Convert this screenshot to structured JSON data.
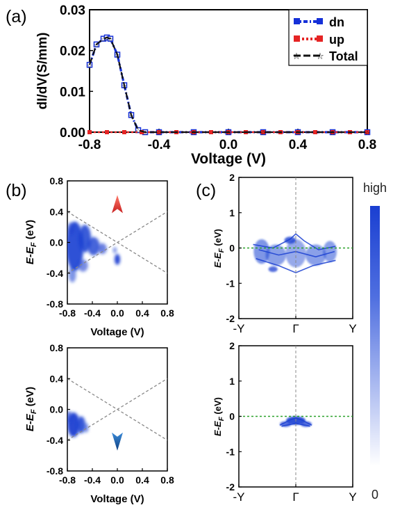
{
  "figure": {
    "panel_labels": {
      "a": "(a)",
      "b": "(b)",
      "c": "(c)"
    },
    "colors": {
      "dn": "#1530d8",
      "up": "#e52424",
      "total": "#111111",
      "map": "#1a3fd1",
      "axes": "#000000",
      "guide": "#888888",
      "fermi": "#2aa12a"
    }
  },
  "chart_data": [
    {
      "id": "a",
      "type": "line",
      "xlabel": "Voltage (V)",
      "ylabel": "dI/dV(S/mm)",
      "xlim": [
        -0.8,
        0.8
      ],
      "ylim": [
        0.0,
        0.03
      ],
      "xticks": [
        "-0.8",
        "-0.4",
        "0.0",
        "0.4",
        "0.8"
      ],
      "yticks": [
        "0.00",
        "0.01",
        "0.02",
        "0.03"
      ],
      "grid": false,
      "legend": "top-right",
      "series": [
        {
          "name": "dn",
          "x": [
            -0.8,
            -0.76,
            -0.72,
            -0.7,
            -0.68,
            -0.64,
            -0.6,
            -0.56,
            -0.52,
            -0.48,
            -0.4,
            -0.2,
            0.0,
            0.2,
            0.4,
            0.6,
            0.8
          ],
          "values": [
            0.0165,
            0.0215,
            0.0229,
            0.0232,
            0.0229,
            0.019,
            0.0115,
            0.0042,
            0.0005,
            0.0,
            0.0,
            0.0,
            0.0,
            0.0,
            0.0,
            0.0,
            0.0
          ]
        },
        {
          "name": "up",
          "x": [
            -0.8,
            -0.7,
            -0.6,
            -0.5,
            -0.4,
            -0.3,
            -0.2,
            -0.1,
            0.0,
            0.1,
            0.2,
            0.3,
            0.4,
            0.5,
            0.6,
            0.7,
            0.8
          ],
          "values": [
            0,
            0,
            0,
            0,
            0,
            0,
            0,
            0,
            0,
            0,
            0,
            0,
            0,
            0,
            0,
            0,
            0
          ]
        },
        {
          "name": "Total",
          "x": [
            -0.8,
            -0.76,
            -0.72,
            -0.7,
            -0.68,
            -0.64,
            -0.6,
            -0.56,
            -0.52,
            -0.48,
            -0.4,
            -0.2,
            0.0,
            0.2,
            0.4,
            0.6,
            0.8
          ],
          "values": [
            0.0165,
            0.0215,
            0.0229,
            0.0232,
            0.0229,
            0.019,
            0.0115,
            0.0042,
            0.0005,
            0.0,
            0.0,
            0.0,
            0.0,
            0.0,
            0.0,
            0.0,
            0.0
          ]
        }
      ]
    },
    {
      "id": "b-top",
      "type": "heatmap",
      "xlabel": "Voltage (V)",
      "ylabel": "E-E",
      "ylabel_sub": "F",
      "ylabel_unit": " (eV)",
      "xlim": [
        -0.8,
        0.8
      ],
      "ylim": [
        -0.8,
        0.8
      ],
      "xticks": [
        "-0.8",
        "-0.4",
        "0.0",
        "0.4",
        "0.8"
      ],
      "yticks": [
        "-0.8",
        "-0.4",
        "0.0",
        "0.4",
        "0.8"
      ],
      "guide_lines": [
        {
          "x1": -0.8,
          "y1": -0.4,
          "x2": 0.8,
          "y2": 0.4
        },
        {
          "x1": -0.8,
          "y1": 0.4,
          "x2": 0.8,
          "y2": -0.4
        }
      ],
      "arrow": {
        "direction": "up",
        "x": 0.0,
        "y": 0.48,
        "color": "#e5403a"
      },
      "blobs": [
        {
          "x": -0.68,
          "y": -0.05,
          "rx": 0.14,
          "ry": 0.32,
          "opacity": 0.9
        },
        {
          "x": -0.52,
          "y": 0.05,
          "rx": 0.1,
          "ry": 0.18,
          "opacity": 0.85
        },
        {
          "x": -0.38,
          "y": -0.05,
          "rx": 0.1,
          "ry": 0.12,
          "opacity": 0.8
        },
        {
          "x": -0.24,
          "y": -0.08,
          "rx": 0.07,
          "ry": 0.07,
          "opacity": 0.65
        },
        {
          "x": -0.74,
          "y": 0.18,
          "rx": 0.06,
          "ry": 0.08,
          "opacity": 0.6
        },
        {
          "x": -0.72,
          "y": -0.42,
          "rx": 0.06,
          "ry": 0.1,
          "opacity": 0.55
        },
        {
          "x": -0.55,
          "y": -0.3,
          "rx": 0.08,
          "ry": 0.08,
          "opacity": 0.6
        },
        {
          "x": 0.0,
          "y": -0.22,
          "rx": 0.045,
          "ry": 0.07,
          "opacity": 0.95
        },
        {
          "x": -0.04,
          "y": -0.1,
          "rx": 0.03,
          "ry": 0.04,
          "opacity": 0.55
        }
      ]
    },
    {
      "id": "b-bottom",
      "type": "heatmap",
      "xlabel": "Voltage (V)",
      "ylabel": "E-E",
      "ylabel_sub": "F",
      "ylabel_unit": " (eV)",
      "xlim": [
        -0.8,
        0.8
      ],
      "ylim": [
        -0.8,
        0.8
      ],
      "xticks": [
        "-0.8",
        "-0.4",
        "0.0",
        "0.4",
        "0.8"
      ],
      "yticks": [
        "-0.8",
        "-0.4",
        "0.0",
        "0.4",
        "0.8"
      ],
      "guide_lines": [
        {
          "x1": -0.8,
          "y1": -0.4,
          "x2": 0.8,
          "y2": 0.4
        },
        {
          "x1": -0.8,
          "y1": 0.4,
          "x2": 0.8,
          "y2": -0.4
        }
      ],
      "arrow": {
        "direction": "down",
        "x": 0.0,
        "y": -0.4,
        "color": "#1c5ea8"
      },
      "blobs": [
        {
          "x": -0.7,
          "y": -0.2,
          "rx": 0.1,
          "ry": 0.16,
          "opacity": 0.95
        },
        {
          "x": -0.58,
          "y": -0.2,
          "rx": 0.07,
          "ry": 0.11,
          "opacity": 0.85
        },
        {
          "x": -0.77,
          "y": -0.1,
          "rx": 0.04,
          "ry": 0.08,
          "opacity": 0.7
        },
        {
          "x": -0.5,
          "y": -0.24,
          "rx": 0.04,
          "ry": 0.06,
          "opacity": 0.55
        }
      ]
    },
    {
      "id": "c-top",
      "type": "heatmap",
      "ylabel": "E-E",
      "ylabel_sub": "F",
      "ylabel_unit": " (eV)",
      "xticks": [
        "-Y",
        "Γ",
        "Y"
      ],
      "yticks": [
        "-2",
        "-1",
        "0",
        "1",
        "2"
      ],
      "ylim": [
        -2,
        2
      ],
      "fermi_level": 0,
      "blobs": [
        {
          "x": -0.6,
          "y": -0.1,
          "rx": 0.14,
          "ry": 0.35,
          "opacity": 0.55
        },
        {
          "x": -0.35,
          "y": -0.2,
          "rx": 0.18,
          "ry": 0.3,
          "opacity": 0.5
        },
        {
          "x": 0.0,
          "y": -0.15,
          "rx": 0.18,
          "ry": 0.4,
          "opacity": 0.45
        },
        {
          "x": 0.35,
          "y": -0.2,
          "rx": 0.18,
          "ry": 0.3,
          "opacity": 0.5
        },
        {
          "x": 0.6,
          "y": -0.1,
          "rx": 0.12,
          "ry": 0.3,
          "opacity": 0.5
        },
        {
          "x": -0.1,
          "y": 0.22,
          "rx": 0.1,
          "ry": 0.1,
          "opacity": 0.8
        },
        {
          "x": -0.4,
          "y": -0.6,
          "rx": 0.08,
          "ry": 0.08,
          "opacity": 0.75
        }
      ],
      "bands": [
        {
          "points": [
            [
              -0.75,
              0.1
            ],
            [
              -0.4,
              0.0
            ],
            [
              -0.1,
              0.25
            ],
            [
              0.0,
              0.4
            ],
            [
              0.15,
              0.2
            ],
            [
              0.4,
              -0.05
            ],
            [
              0.7,
              0.05
            ]
          ]
        },
        {
          "points": [
            [
              -0.7,
              -0.3
            ],
            [
              -0.3,
              -0.5
            ],
            [
              0.0,
              -0.7
            ],
            [
              0.3,
              -0.5
            ],
            [
              0.7,
              -0.35
            ]
          ]
        },
        {
          "points": [
            [
              -0.65,
              -0.05
            ],
            [
              -0.3,
              -0.2
            ],
            [
              0.0,
              -0.1
            ],
            [
              0.35,
              -0.25
            ],
            [
              0.68,
              -0.1
            ]
          ]
        }
      ]
    },
    {
      "id": "c-bottom",
      "type": "heatmap",
      "ylabel": "E-E",
      "ylabel_sub": "F",
      "ylabel_unit": " (eV)",
      "xticks": [
        "-Y",
        "Γ",
        "Y"
      ],
      "yticks": [
        "-2",
        "-1",
        "0",
        "1",
        "2"
      ],
      "ylim": [
        -2,
        2
      ],
      "fermi_level": 0,
      "blobs": [
        {
          "x": 0.0,
          "y": -0.12,
          "rx": 0.17,
          "ry": 0.12,
          "opacity": 0.9
        },
        {
          "x": -0.18,
          "y": -0.22,
          "rx": 0.1,
          "ry": 0.08,
          "opacity": 0.75
        },
        {
          "x": 0.18,
          "y": -0.22,
          "rx": 0.1,
          "ry": 0.08,
          "opacity": 0.75
        }
      ],
      "bands": [
        {
          "points": [
            [
              -0.28,
              -0.25
            ],
            [
              -0.1,
              -0.1
            ],
            [
              0.0,
              -0.05
            ],
            [
              0.1,
              -0.1
            ],
            [
              0.28,
              -0.25
            ]
          ]
        },
        {
          "points": [
            [
              -0.25,
              -0.28
            ],
            [
              0.0,
              -0.2
            ],
            [
              0.25,
              -0.28
            ]
          ]
        }
      ]
    },
    {
      "id": "colorbar",
      "type": "heatmap",
      "max_label": "high",
      "min_label": "0",
      "color_high": "#1a3fd1",
      "color_low": "#ffffff"
    }
  ]
}
